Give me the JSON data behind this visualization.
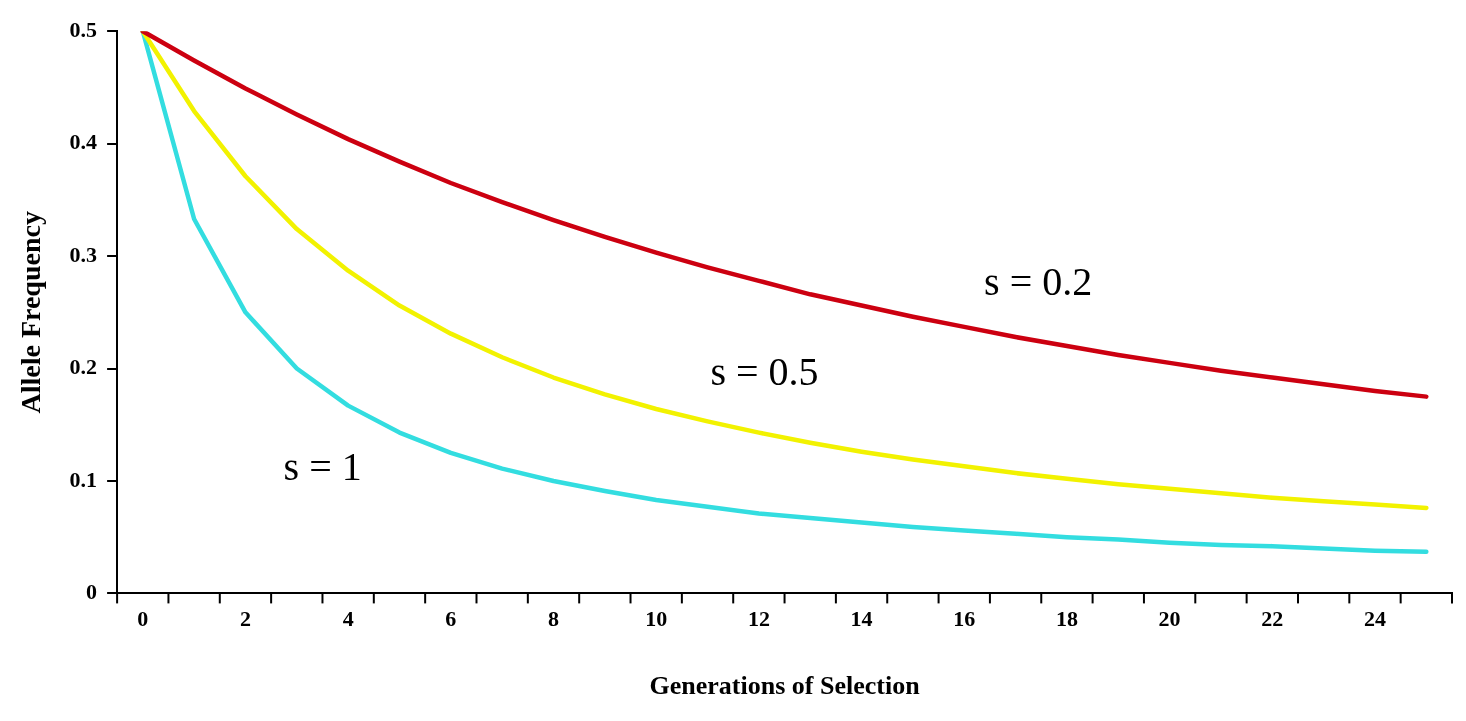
{
  "chart_data": {
    "type": "line",
    "xlabel": "Generations of Selection",
    "ylabel": "Allele Frequency",
    "categories": [
      "0",
      null,
      "2",
      null,
      "4",
      null,
      "6",
      null,
      "8",
      null,
      "10",
      null,
      "12",
      null,
      "14",
      null,
      "16",
      null,
      "18",
      null,
      "20",
      null,
      "22",
      null,
      "24",
      null
    ],
    "series": [
      {
        "name": "s = 0.2",
        "color": "#cc0010",
        "values": [
          0.5,
          0.474,
          0.449,
          0.426,
          0.404,
          0.384,
          0.365,
          0.348,
          0.332,
          0.317,
          0.303,
          0.29,
          0.278,
          0.266,
          0.256,
          0.246,
          0.237,
          0.228,
          0.22,
          0.212,
          0.205,
          0.198,
          0.192,
          0.186,
          0.18,
          0.175
        ]
      },
      {
        "name": "s = 0.5",
        "color": "#f2f200",
        "values": [
          0.5,
          0.429,
          0.371,
          0.324,
          0.287,
          0.256,
          0.231,
          0.21,
          0.192,
          0.177,
          0.164,
          0.153,
          0.143,
          0.134,
          0.126,
          0.119,
          0.113,
          0.107,
          0.102,
          0.097,
          0.093,
          0.089,
          0.085,
          0.082,
          0.079,
          0.076
        ]
      },
      {
        "name": "s = 1",
        "color": "#33dde0",
        "values": [
          0.5,
          0.333,
          0.25,
          0.2,
          0.167,
          0.143,
          0.125,
          0.111,
          0.1,
          0.091,
          0.083,
          0.077,
          0.071,
          0.067,
          0.063,
          0.059,
          0.056,
          0.053,
          0.05,
          0.048,
          0.045,
          0.043,
          0.042,
          0.04,
          0.038,
          0.037
        ]
      }
    ],
    "ylim": [
      0,
      0.5
    ],
    "yticks": [
      0,
      0.1,
      0.2,
      0.3,
      0.4,
      0.5
    ],
    "grid": false,
    "marker": "none"
  }
}
